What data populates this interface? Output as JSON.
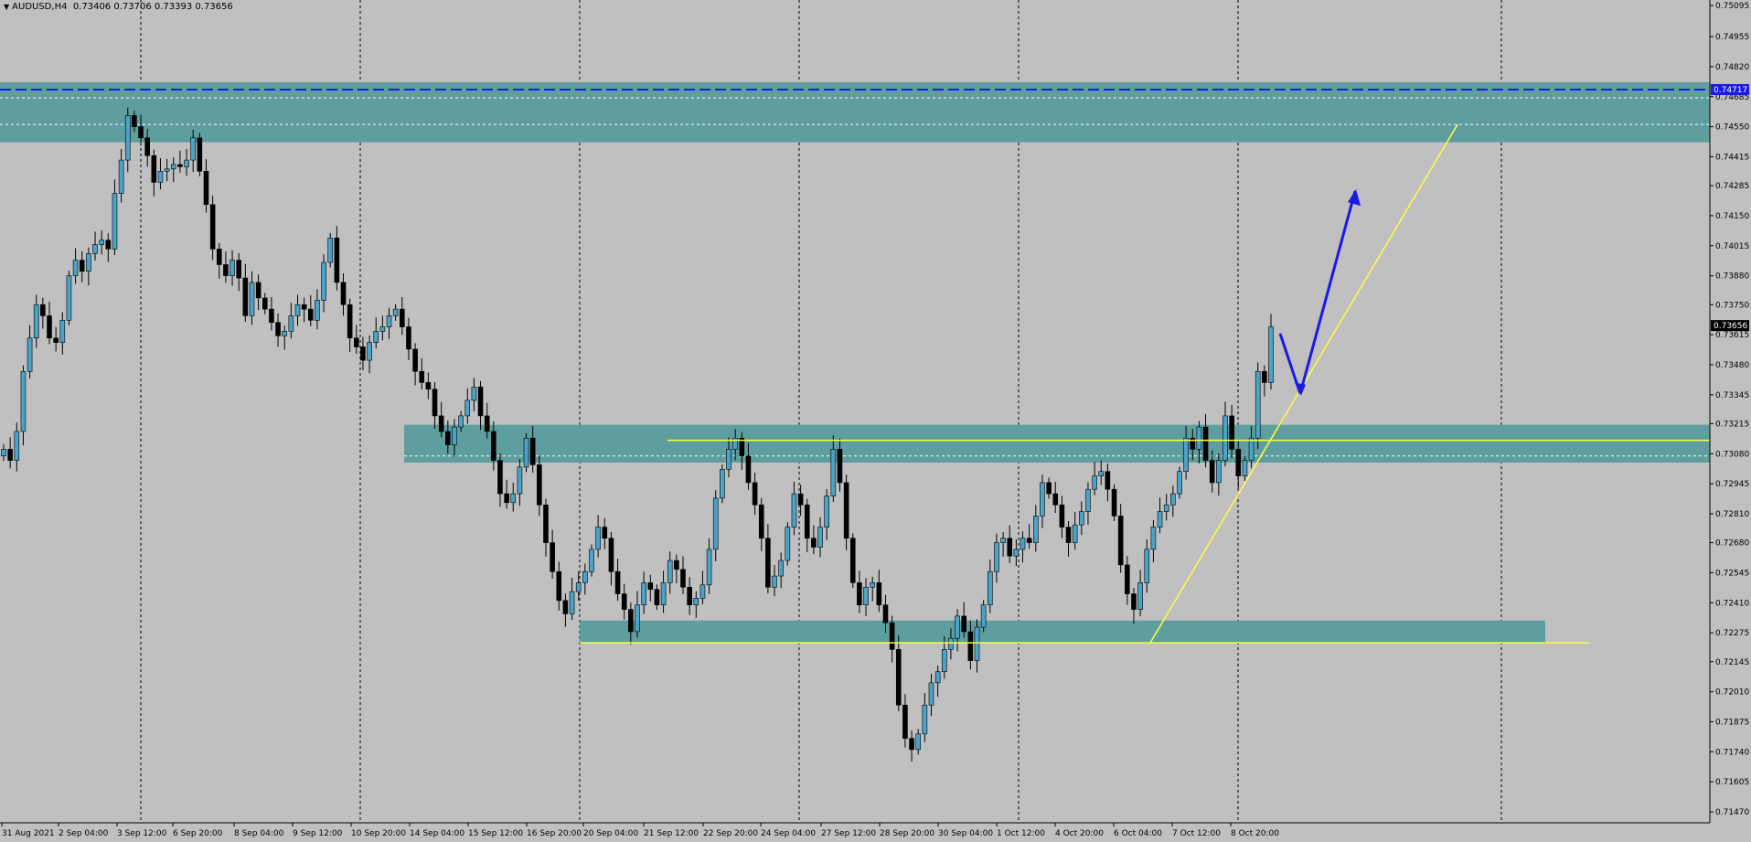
{
  "header": {
    "menu_icon": "triangle-down-icon",
    "symbol": "AUDUSD,H4",
    "ohlc": "0.73406 0.73706 0.73393 0.73656"
  },
  "colors": {
    "background": "#c0c0c0",
    "bull_body": "#4aa3c8",
    "bear_body": "#000000",
    "zone": "#5f9e9e",
    "trendline": "#ffff40",
    "arrow": "#1a1ae6",
    "resistance_line": "#1a1ae6"
  },
  "price_labels": {
    "resistance": "0.74717",
    "last": "0.73656"
  },
  "chart_data": {
    "type": "candlestick",
    "ylim": [
      0.7147,
      0.75095
    ],
    "y_ticks": [
      "0.75095",
      "0.74955",
      "0.74820",
      "0.74685",
      "0.74550",
      "0.74415",
      "0.74285",
      "0.74150",
      "0.74015",
      "0.73880",
      "0.73750",
      "0.73615",
      "0.73480",
      "0.73345",
      "0.73215",
      "0.73080",
      "0.72945",
      "0.72810",
      "0.72680",
      "0.72545",
      "0.72410",
      "0.72275",
      "0.72145",
      "0.72010",
      "0.71875",
      "0.71740",
      "0.71605",
      "0.71470"
    ],
    "x_ticks": [
      "31 Aug 2021",
      "2 Sep 04:00",
      "3 Sep 12:00",
      "6 Sep 20:00",
      "8 Sep 04:00",
      "9 Sep 12:00",
      "10 Sep 20:00",
      "14 Sep 04:00",
      "15 Sep 12:00",
      "16 Sep 20:00",
      "20 Sep 04:00",
      "21 Sep 12:00",
      "22 Sep 20:00",
      "24 Sep 04:00",
      "27 Sep 12:00",
      "28 Sep 20:00",
      "30 Sep 04:00",
      "1 Oct 12:00",
      "4 Oct 20:00",
      "6 Oct 04:00",
      "7 Oct 12:00",
      "8 Oct 20:00"
    ],
    "resistance_level": 0.74717,
    "last_price": 0.73656,
    "zones": [
      {
        "from": 0.7448,
        "to": 0.7475
      },
      {
        "from": 0.7304,
        "to": 0.7321
      },
      {
        "from": 0.7223,
        "to": 0.7233
      }
    ],
    "horizontal_lines": [
      0.7314,
      0.7223
    ],
    "closes": [
      0.731,
      0.7305,
      0.7318,
      0.7345,
      0.736,
      0.7375,
      0.737,
      0.736,
      0.7358,
      0.7368,
      0.7388,
      0.7395,
      0.739,
      0.7398,
      0.7402,
      0.7404,
      0.74,
      0.7425,
      0.744,
      0.746,
      0.7455,
      0.745,
      0.7442,
      0.743,
      0.7435,
      0.7436,
      0.7438,
      0.7437,
      0.744,
      0.745,
      0.7435,
      0.742,
      0.74,
      0.7393,
      0.7388,
      0.7395,
      0.7387,
      0.737,
      0.7385,
      0.7378,
      0.7373,
      0.7367,
      0.7361,
      0.7363,
      0.737,
      0.7375,
      0.7373,
      0.7368,
      0.7377,
      0.7394,
      0.7405,
      0.7385,
      0.7375,
      0.736,
      0.7356,
      0.735,
      0.7358,
      0.7363,
      0.7365,
      0.737,
      0.7373,
      0.7365,
      0.7355,
      0.7345,
      0.734,
      0.7337,
      0.7325,
      0.7318,
      0.7312,
      0.732,
      0.7325,
      0.7332,
      0.7338,
      0.7325,
      0.7318,
      0.7305,
      0.729,
      0.7286,
      0.729,
      0.7302,
      0.7315,
      0.7303,
      0.7285,
      0.7268,
      0.7255,
      0.7242,
      0.7236,
      0.7246,
      0.725,
      0.7255,
      0.7265,
      0.7275,
      0.727,
      0.7255,
      0.7245,
      0.7238,
      0.7228,
      0.724,
      0.725,
      0.7247,
      0.724,
      0.725,
      0.726,
      0.7256,
      0.7248,
      0.724,
      0.7243,
      0.7249,
      0.7265,
      0.7288,
      0.7301,
      0.731,
      0.7315,
      0.7307,
      0.7295,
      0.7285,
      0.727,
      0.7248,
      0.7253,
      0.726,
      0.7275,
      0.729,
      0.7285,
      0.727,
      0.7266,
      0.7275,
      0.7289,
      0.731,
      0.7295,
      0.727,
      0.725,
      0.724,
      0.7248,
      0.725,
      0.724,
      0.7232,
      0.722,
      0.7195,
      0.718,
      0.7175,
      0.7182,
      0.7195,
      0.7205,
      0.721,
      0.722,
      0.7225,
      0.7235,
      0.7228,
      0.7215,
      0.723,
      0.724,
      0.7255,
      0.7268,
      0.727,
      0.7262,
      0.7265,
      0.727,
      0.7268,
      0.728,
      0.7295,
      0.729,
      0.7285,
      0.7275,
      0.7268,
      0.7276,
      0.7282,
      0.7292,
      0.7298,
      0.73,
      0.7292,
      0.728,
      0.7258,
      0.7245,
      0.7238,
      0.725,
      0.7265,
      0.7275,
      0.7282,
      0.7285,
      0.729,
      0.73,
      0.7315,
      0.731,
      0.732,
      0.7305,
      0.7295,
      0.7305,
      0.7325,
      0.731,
      0.7298,
      0.7305,
      0.7315,
      0.7345,
      0.734,
      0.7365
    ],
    "highs_offset": 0.00045,
    "lows_offset": 0.00045,
    "trend_line": {
      "from": [
        0.7223,
        "6 Oct 04:00"
      ],
      "to": [
        0.7456,
        "8 Oct 20:00+"
      ]
    },
    "arrows": [
      "down-arrow",
      "up-arrow"
    ]
  }
}
